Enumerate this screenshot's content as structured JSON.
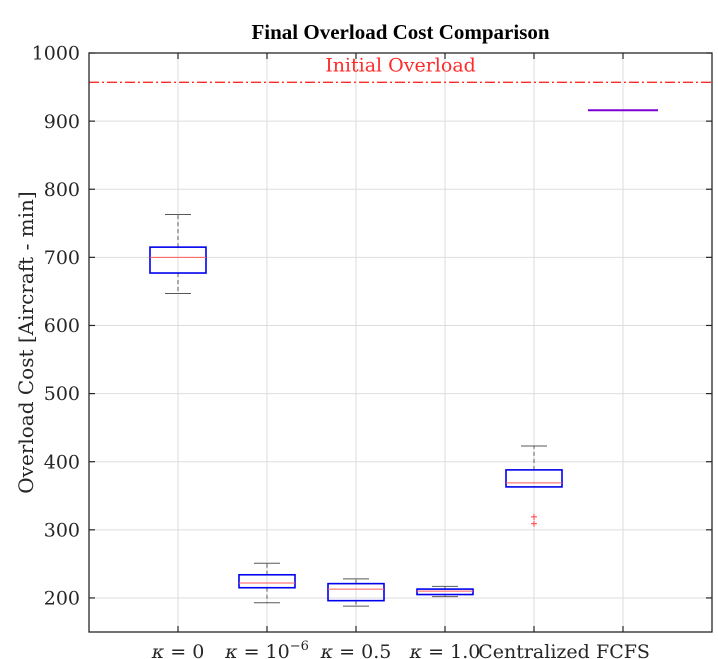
{
  "chart_data": {
    "type": "box",
    "title": "Final  Overload Cost Comparison",
    "ylabel": "Overload Cost [Aircraft - min]",
    "xlabel": "",
    "ylim": [
      150,
      1000
    ],
    "yticks": [
      200,
      300,
      400,
      500,
      600,
      700,
      800,
      900,
      1000
    ],
    "grid": true,
    "categories": [
      {
        "sym": "κ",
        "op": " = ",
        "val": "0"
      },
      {
        "sym": "κ",
        "op": " = ",
        "val": "10",
        "sup": "−6"
      },
      {
        "sym": "κ",
        "op": " = ",
        "val": "0.5"
      },
      {
        "sym": "κ",
        "op": " = ",
        "val": "1.0"
      },
      {
        "val": "Centralized"
      },
      {
        "val": "FCFS"
      }
    ],
    "boxes": [
      {
        "whisker_low": 647,
        "q1": 677,
        "median": 700,
        "q3": 715,
        "whisker_high": 763,
        "outliers": []
      },
      {
        "whisker_low": 193,
        "q1": 215,
        "median": 222,
        "q3": 234,
        "whisker_high": 251,
        "outliers": []
      },
      {
        "whisker_low": 188,
        "q1": 196,
        "median": 213,
        "q3": 221,
        "whisker_high": 228,
        "outliers": []
      },
      {
        "whisker_low": 202,
        "q1": 205,
        "median": 210,
        "q3": 213,
        "whisker_high": 217,
        "outliers": []
      },
      {
        "whisker_low": 363,
        "q1": 363,
        "median": 369,
        "q3": 388,
        "whisker_high": 423,
        "outliers": [
          309,
          319
        ]
      },
      {
        "whisker_low": 916,
        "q1": 916,
        "median": 916,
        "q3": 916,
        "whisker_high": 916,
        "outliers": []
      }
    ],
    "reference_line": {
      "value": 957,
      "label": "Initial Overload",
      "color": "#ff2a2a"
    },
    "colors": {
      "box": "#0000ee",
      "median": "#ff5a5a",
      "whisker": "#595959",
      "outlier": "#ff3b3b",
      "fcfs_line": "#7b00d4",
      "grid": "#dedede",
      "axis": "#262626"
    }
  }
}
